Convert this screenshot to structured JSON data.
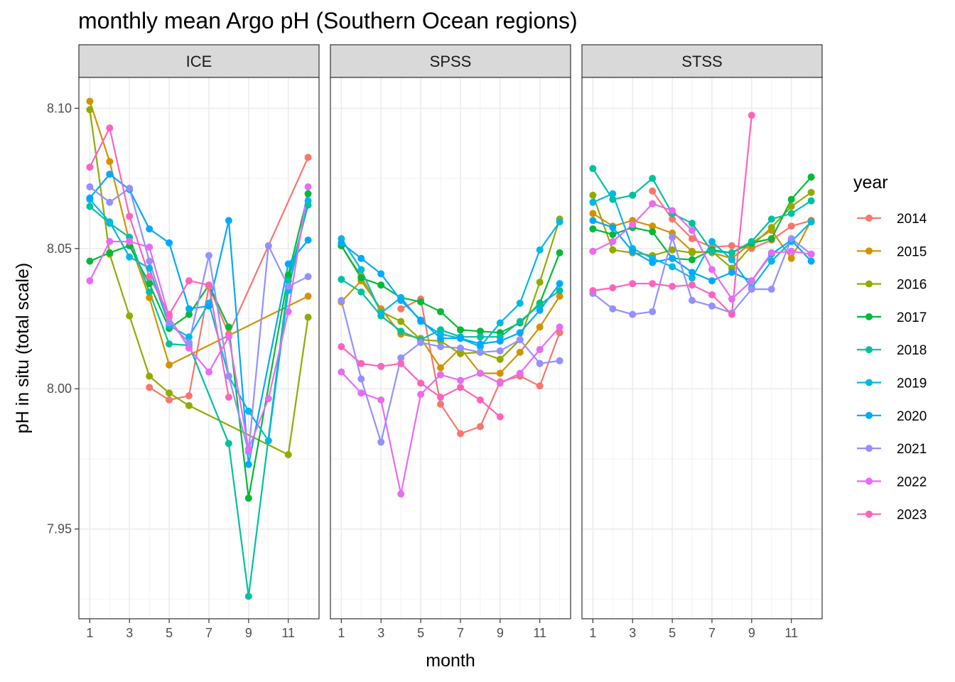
{
  "chart_data": {
    "type": "line",
    "title": "monthly mean Argo pH (Southern Ocean regions)",
    "xlabel": "month",
    "ylabel": "pH in situ (total scale)",
    "x_ticks": [
      1,
      3,
      5,
      7,
      9,
      11
    ],
    "y_ticks": [
      7.95,
      8.0,
      8.05,
      8.1
    ],
    "y_tick_labels": [
      "7.95",
      "8.00",
      "8.05",
      "8.10"
    ],
    "x_ticks_labels": [
      "1",
      "3",
      "5",
      "7",
      "9",
      "11"
    ],
    "xlim": [
      0.45,
      12.55
    ],
    "ylim": [
      7.918,
      8.111
    ],
    "legend": {
      "title": "year",
      "position": "right"
    },
    "panels": [
      {
        "name": "ICE",
        "series": [
          {
            "name": "2014",
            "color": "#F8766D",
            "x": [
              4,
              5,
              6,
              7,
              8,
              12
            ],
            "y": [
              8.0005,
              7.996,
              7.9975,
              8.0365,
              8.0195,
              8.0825
            ]
          },
          {
            "name": "2015",
            "color": "#D39200",
            "x": [
              1,
              2,
              3,
              4,
              5,
              12
            ],
            "y": [
              8.1025,
              8.081,
              8.0525,
              8.0325,
              8.0085,
              8.033
            ]
          },
          {
            "name": "2016",
            "color": "#93AA00",
            "x": [
              1,
              2,
              3,
              4,
              5,
              6,
              11,
              12
            ],
            "y": [
              8.0995,
              8.048,
              8.026,
              8.0045,
              7.9985,
              7.994,
              7.9765,
              8.0255
            ]
          },
          {
            "name": "2017",
            "color": "#00BA38",
            "x": [
              1,
              2,
              3,
              4,
              5,
              6,
              7,
              8,
              9,
              11,
              12
            ],
            "y": [
              8.0455,
              8.0485,
              8.051,
              8.0375,
              8.0215,
              8.0265,
              8.037,
              8.022,
              7.961,
              8.0405,
              8.0695
            ]
          },
          {
            "name": "2018",
            "color": "#00C19F",
            "x": [
              1,
              2,
              3,
              4,
              5,
              6,
              8,
              9,
              11,
              12
            ],
            "y": [
              8.065,
              8.059,
              8.054,
              8.0345,
              8.016,
              8.0155,
              7.9805,
              7.926,
              8.0385,
              8.0655
            ]
          },
          {
            "name": "2019",
            "color": "#00B9E3",
            "x": [
              1,
              2,
              3,
              4,
              5,
              6,
              7,
              8,
              9,
              10,
              11,
              12
            ],
            "y": [
              8.0675,
              8.0595,
              8.047,
              8.043,
              8.0225,
              8.0185,
              8.0305,
              8.0045,
              7.992,
              7.9815,
              8.035,
              8.067
            ]
          },
          {
            "name": "2020",
            "color": "#00A9FF",
            "x": [
              1,
              2,
              3,
              4,
              5,
              6,
              7,
              8,
              9,
              11,
              12
            ],
            "y": [
              8.068,
              8.0765,
              8.071,
              8.057,
              8.052,
              8.0285,
              8.0295,
              8.06,
              7.973,
              8.0445,
              8.053
            ]
          },
          {
            "name": "2021",
            "color": "#9590FF",
            "x": [
              1,
              2,
              3,
              4,
              5,
              6,
              7,
              8,
              9,
              10,
              11,
              12
            ],
            "y": [
              8.072,
              8.0665,
              8.0715,
              8.0455,
              8.0235,
              8.0165,
              8.0475,
              8.0045,
              7.9775,
              8.051,
              8.0365,
              8.04
            ]
          },
          {
            "name": "2022",
            "color": "#E76BF3",
            "x": [
              1,
              2,
              3,
              4,
              5,
              6,
              7,
              8,
              9,
              10,
              11,
              12
            ],
            "y": [
              8.0385,
              8.0525,
              8.0525,
              8.0505,
              8.0255,
              8.0145,
              8.006,
              8.0185,
              7.9785,
              7.9965,
              8.0275,
              8.072
            ]
          },
          {
            "name": "2023",
            "color": "#FF62BC",
            "x": [
              1,
              2,
              3,
              4,
              5,
              6,
              7,
              8
            ],
            "y": [
              8.079,
              8.093,
              8.0615,
              8.04,
              8.0265,
              8.0385,
              8.037,
              7.997
            ]
          }
        ]
      },
      {
        "name": "SPSS",
        "series": [
          {
            "name": "2014",
            "color": "#F8766D",
            "x": [
              4,
              5,
              6,
              7,
              8,
              9,
              10,
              11,
              12
            ],
            "y": [
              8.0285,
              8.032,
              7.9945,
              7.984,
              7.9865,
              8.0025,
              8.0045,
              8.001,
              8.02
            ]
          },
          {
            "name": "2015",
            "color": "#D39200",
            "x": [
              1,
              2,
              3,
              4,
              5,
              6,
              7,
              8,
              9,
              10,
              11,
              12
            ],
            "y": [
              8.031,
              8.0385,
              8.0285,
              8.0195,
              8.018,
              8.0075,
              8.0145,
              8.0055,
              8.0055,
              8.013,
              8.022,
              8.033
            ]
          },
          {
            "name": "2016",
            "color": "#93AA00",
            "x": [
              1,
              2,
              3,
              4,
              5,
              6,
              7,
              8,
              9,
              10,
              11,
              12
            ],
            "y": [
              8.051,
              8.04,
              8.0275,
              8.024,
              8.0175,
              8.017,
              8.0125,
              8.013,
              8.0105,
              8.0175,
              8.038,
              8.0605
            ]
          },
          {
            "name": "2017",
            "color": "#00BA38",
            "x": [
              1,
              2,
              3,
              4,
              5,
              6,
              7,
              8,
              9,
              10,
              11,
              12
            ],
            "y": [
              8.051,
              8.0395,
              8.037,
              8.0325,
              8.031,
              8.0275,
              8.021,
              8.0205,
              8.02,
              8.0235,
              8.0305,
              8.0485
            ]
          },
          {
            "name": "2018",
            "color": "#00C19F",
            "x": [
              1,
              2,
              3,
              4,
              5,
              6,
              7,
              8,
              9,
              10,
              11,
              12
            ],
            "y": [
              8.039,
              8.0345,
              8.026,
              8.0205,
              8.0175,
              8.021,
              8.0185,
              8.0185,
              8.0185,
              8.024,
              8.03,
              8.035
            ]
          },
          {
            "name": "2019",
            "color": "#00B9E3",
            "x": [
              1,
              2,
              3,
              4,
              5,
              6,
              7,
              8,
              9,
              10,
              11,
              12
            ],
            "y": [
              8.0535,
              8.0425,
              8.027,
              8.0325,
              8.024,
              8.0195,
              8.018,
              8.015,
              8.0235,
              8.0305,
              8.0495,
              8.0595
            ]
          },
          {
            "name": "2020",
            "color": "#00A9FF",
            "x": [
              1,
              2,
              3,
              4,
              5,
              6,
              7,
              8,
              9,
              10,
              11,
              12
            ],
            "y": [
              8.052,
              8.0465,
              8.041,
              8.0315,
              8.0245,
              8.018,
              8.018,
              8.016,
              8.017,
              8.02,
              8.028,
              8.0375
            ]
          },
          {
            "name": "2021",
            "color": "#9590FF",
            "x": [
              1,
              2,
              3,
              4,
              5,
              6,
              7,
              8,
              9,
              10,
              11,
              12
            ],
            "y": [
              8.0315,
              8.0035,
              7.981,
              8.011,
              8.0165,
              8.015,
              8.0145,
              8.013,
              8.0135,
              8.0175,
              8.009,
              8.01
            ]
          },
          {
            "name": "2022",
            "color": "#E76BF3",
            "x": [
              1,
              2,
              3,
              4,
              5,
              6,
              7,
              8,
              9,
              10,
              11,
              12
            ],
            "y": [
              8.006,
              7.9985,
              7.996,
              7.9625,
              7.998,
              8.005,
              8.003,
              8.0055,
              8.002,
              8.0055,
              8.014,
              8.022
            ]
          },
          {
            "name": "2023",
            "color": "#FF62BC",
            "x": [
              1,
              2,
              3,
              4,
              5,
              6,
              7,
              8,
              9
            ],
            "y": [
              8.015,
              8.009,
              8.008,
              8.009,
              8.002,
              7.997,
              8.0005,
              7.996,
              7.99
            ]
          }
        ]
      },
      {
        "name": "STSS",
        "series": [
          {
            "name": "2014",
            "color": "#F8766D",
            "x": [
              4,
              5,
              6,
              7,
              8,
              9,
              10,
              11,
              12
            ],
            "y": [
              8.0705,
              8.0605,
              8.0535,
              8.0505,
              8.051,
              8.05,
              8.053,
              8.058,
              8.06
            ]
          },
          {
            "name": "2015",
            "color": "#D39200",
            "x": [
              1,
              2,
              3,
              4,
              5,
              6,
              7,
              8,
              9,
              10,
              11,
              12
            ],
            "y": [
              8.0625,
              8.058,
              8.06,
              8.058,
              8.0555,
              8.049,
              8.0485,
              8.0465,
              8.052,
              8.0565,
              8.0465,
              8.06
            ]
          },
          {
            "name": "2016",
            "color": "#93AA00",
            "x": [
              1,
              2,
              3,
              4,
              5,
              6,
              7,
              8,
              9,
              10,
              11,
              12
            ],
            "y": [
              8.069,
              8.0495,
              8.0485,
              8.0475,
              8.0495,
              8.0485,
              8.049,
              8.043,
              8.051,
              8.0575,
              8.065,
              8.07
            ]
          },
          {
            "name": "2017",
            "color": "#00BA38",
            "x": [
              1,
              2,
              3,
              4,
              5,
              6,
              7,
              8,
              9,
              10,
              11,
              12
            ],
            "y": [
              8.057,
              8.055,
              8.0575,
              8.056,
              8.0465,
              8.046,
              8.0495,
              8.0485,
              8.052,
              8.0535,
              8.0675,
              8.0755
            ]
          },
          {
            "name": "2018",
            "color": "#00C19F",
            "x": [
              1,
              2,
              3,
              4,
              5,
              6,
              7,
              8,
              9,
              10,
              11,
              12
            ],
            "y": [
              8.0785,
              8.0675,
              8.069,
              8.075,
              8.0625,
              8.059,
              8.049,
              8.0485,
              8.0525,
              8.0605,
              8.0625,
              8.067
            ]
          },
          {
            "name": "2019",
            "color": "#00B9E3",
            "x": [
              1,
              2,
              3,
              4,
              5,
              6,
              7,
              8,
              9,
              10,
              11,
              12
            ],
            "y": [
              8.0665,
              8.0695,
              8.05,
              8.0465,
              8.0435,
              8.0395,
              8.0525,
              8.046,
              8.036,
              8.0455,
              8.0525,
              8.0595
            ]
          },
          {
            "name": "2020",
            "color": "#00A9FF",
            "x": [
              1,
              2,
              3,
              4,
              5,
              6,
              7,
              8,
              9,
              10,
              11,
              12
            ],
            "y": [
              8.06,
              8.0575,
              8.049,
              8.045,
              8.0465,
              8.0415,
              8.0385,
              8.0415,
              8.0385,
              8.048,
              8.053,
              8.0455
            ]
          },
          {
            "name": "2021",
            "color": "#9590FF",
            "x": [
              1,
              2,
              3,
              4,
              5,
              6,
              7,
              8,
              9,
              10,
              11,
              12
            ],
            "y": [
              8.034,
              8.0285,
              8.0265,
              8.0275,
              8.054,
              8.0315,
              8.0295,
              8.027,
              8.0355,
              8.0355,
              8.0535,
              8.048
            ]
          },
          {
            "name": "2022",
            "color": "#E76BF3",
            "x": [
              1,
              2,
              3,
              4,
              5,
              6,
              7,
              8,
              9,
              10,
              11,
              12
            ],
            "y": [
              8.049,
              8.0525,
              8.0585,
              8.066,
              8.0635,
              8.0565,
              8.0425,
              8.032,
              8.0385,
              8.0485,
              8.049,
              8.048
            ]
          },
          {
            "name": "2023",
            "color": "#FF62BC",
            "x": [
              1,
              2,
              3,
              4,
              5,
              6,
              7,
              8,
              9
            ],
            "y": [
              8.035,
              8.036,
              8.0375,
              8.0375,
              8.0365,
              8.037,
              8.0335,
              8.0265,
              8.0975
            ]
          }
        ]
      }
    ]
  }
}
